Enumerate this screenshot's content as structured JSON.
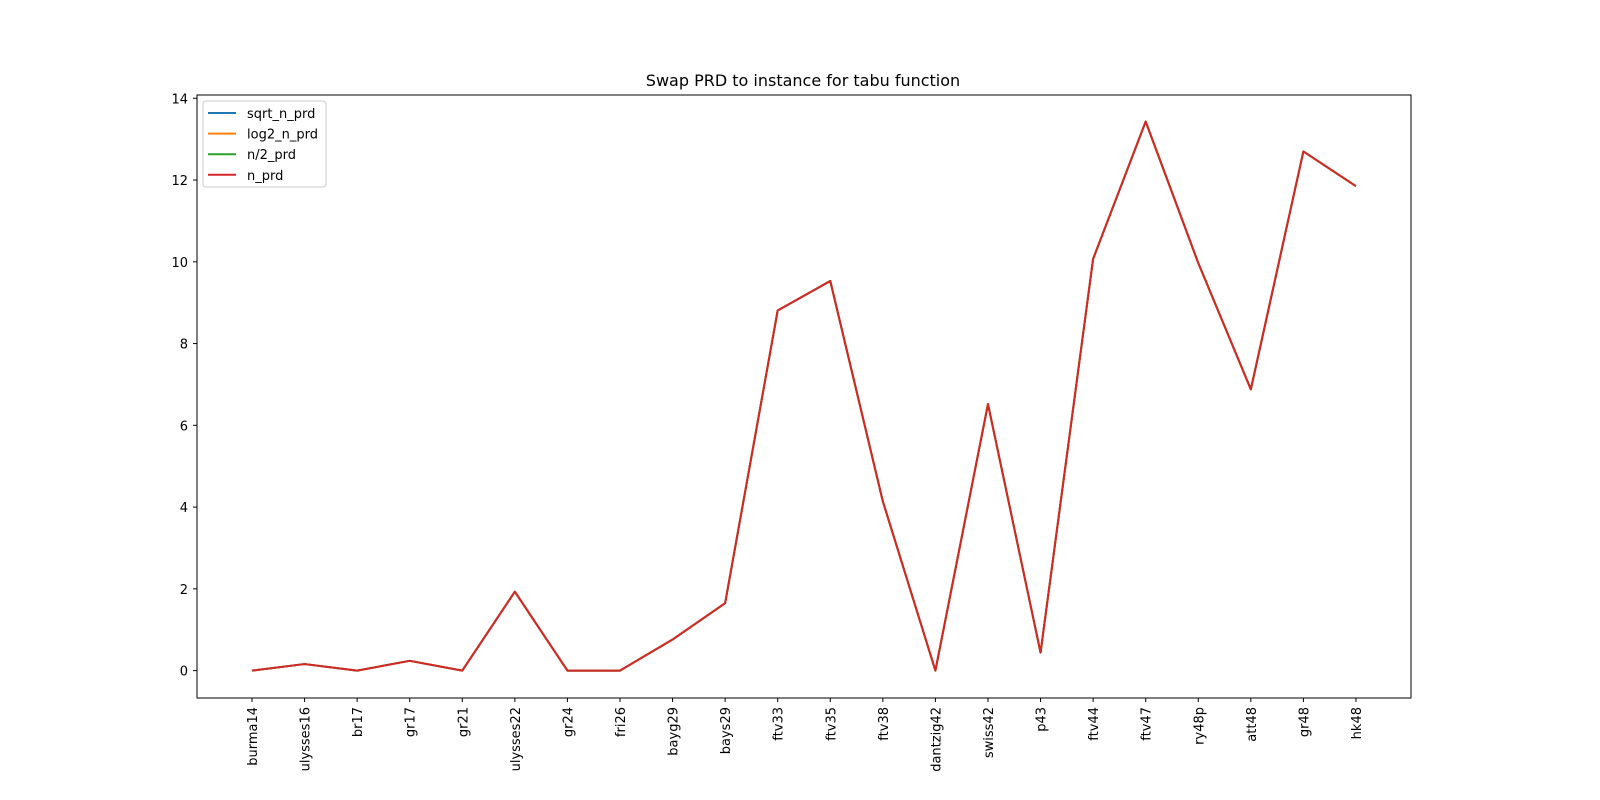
{
  "chart_data": {
    "type": "line",
    "title": "Swap PRD to instance for tabu function",
    "xlabel": "",
    "ylabel": "",
    "categories": [
      "burma14",
      "ulysses16",
      "br17",
      "gr17",
      "gr21",
      "ulysses22",
      "gr24",
      "fri26",
      "bayg29",
      "bays29",
      "ftv33",
      "ftv35",
      "ftv38",
      "dantzig42",
      "swiss42",
      "p43",
      "ftv44",
      "ftv47",
      "ry48p",
      "att48",
      "gr48",
      "hk48"
    ],
    "yticks": [
      0,
      2,
      4,
      6,
      8,
      10,
      12,
      14
    ],
    "ylim": [
      -0.67,
      14.08
    ],
    "grid": false,
    "legend_position": "top-left",
    "series": [
      {
        "name": "sqrt_n_prd",
        "color": "#1f77b4",
        "values": [
          0.0,
          0.16,
          0.0,
          0.24,
          0.0,
          1.93,
          0.0,
          0.0,
          0.76,
          1.65,
          8.81,
          9.53,
          4.14,
          0.0,
          6.52,
          0.44,
          10.07,
          13.43,
          9.97,
          6.88,
          12.7,
          11.85
        ]
      },
      {
        "name": "log2_n_prd",
        "color": "#ff7f0e",
        "values": [
          0.0,
          0.16,
          0.0,
          0.24,
          0.0,
          1.93,
          0.0,
          0.0,
          0.76,
          1.65,
          8.81,
          9.53,
          4.14,
          0.0,
          6.52,
          0.44,
          10.07,
          13.43,
          9.97,
          6.88,
          12.7,
          11.85
        ]
      },
      {
        "name": "n/2_prd",
        "color": "#2ca02c",
        "values": [
          0.0,
          0.16,
          0.0,
          0.24,
          0.0,
          1.93,
          0.0,
          0.0,
          0.76,
          1.65,
          8.81,
          9.53,
          4.14,
          0.0,
          6.52,
          0.44,
          10.07,
          13.43,
          9.97,
          6.88,
          12.7,
          11.85
        ]
      },
      {
        "name": "n_prd",
        "color": "#d62728",
        "values": [
          0.0,
          0.16,
          0.0,
          0.24,
          0.0,
          1.93,
          0.0,
          0.0,
          0.76,
          1.65,
          8.81,
          9.53,
          4.14,
          0.0,
          6.52,
          0.44,
          10.07,
          13.43,
          9.97,
          6.88,
          12.7,
          11.85
        ]
      }
    ]
  }
}
